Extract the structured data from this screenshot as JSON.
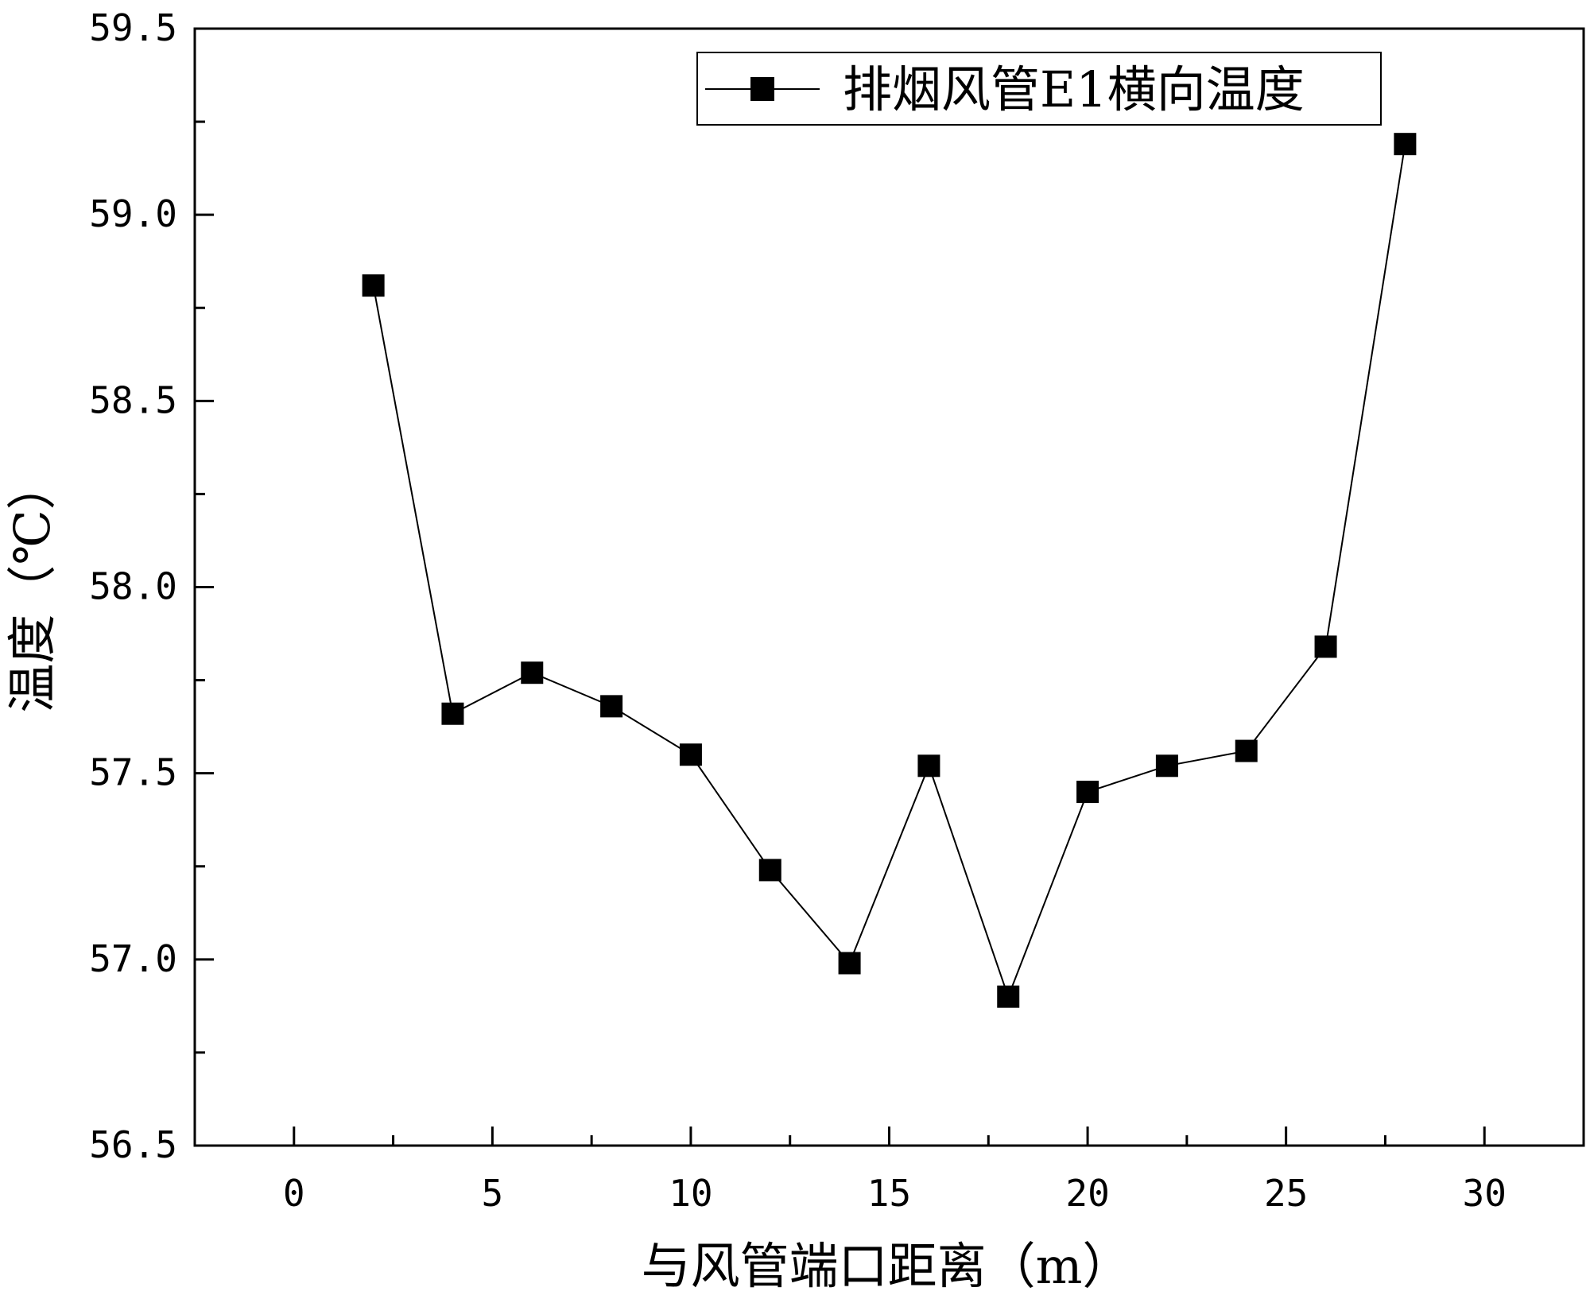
{
  "chart_data": {
    "type": "line",
    "title": "",
    "xlabel": "与风管端口距离（m）",
    "ylabel": "温度（℃）",
    "xlim": [
      -2.5,
      32.5
    ],
    "ylim": [
      56.5,
      59.5
    ],
    "x_ticks": [
      0,
      5,
      10,
      15,
      20,
      25,
      30
    ],
    "x_tick_labels": [
      "0",
      "5",
      "10",
      "15",
      "20",
      "25",
      "30"
    ],
    "y_ticks": [
      56.5,
      57.0,
      57.5,
      58.0,
      58.5,
      59.0,
      59.5
    ],
    "y_tick_labels": [
      "56.5",
      "57.0",
      "57.5",
      "58.0",
      "58.5",
      "59.0",
      "59.5"
    ],
    "grid": false,
    "legend_position": "top-right",
    "series": [
      {
        "name": "排烟风管E1横向温度",
        "color": "#000000",
        "marker": "square",
        "x": [
          2,
          4,
          6,
          8,
          10,
          12,
          14,
          16,
          18,
          20,
          22,
          24,
          26,
          28
        ],
        "y": [
          58.81,
          57.66,
          57.77,
          57.68,
          57.55,
          57.24,
          56.99,
          57.52,
          56.9,
          57.45,
          57.52,
          57.56,
          57.84,
          59.19
        ]
      }
    ]
  }
}
